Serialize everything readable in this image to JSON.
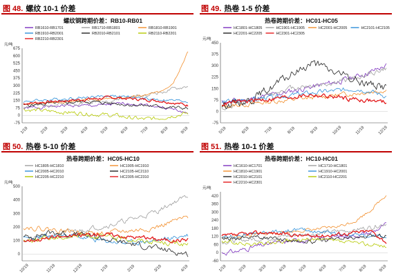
{
  "panels": [
    {
      "fig_label": "图 48.",
      "fig_name": "螺纹 10-1 价差",
      "chart_data": {
        "type": "line",
        "title": "螺纹钢跨期价差：RB10-RB01",
        "ylabel": "元/吨",
        "ylim": [
          -75,
          675
        ],
        "yticks": [
          "675",
          "600",
          "525",
          "450",
          "375",
          "300",
          "225",
          "150",
          "75",
          "0",
          "-75"
        ],
        "xticks": [
          "1/19",
          "2/19",
          "3/19",
          "4/19",
          "5/19",
          "6/19",
          "7/19",
          "8/19",
          "9/19"
        ],
        "legend_cols": 3,
        "series": [
          {
            "name": "RB1610-RB1701",
            "color": "#7b2fbe",
            "base": [
              70,
              80,
              90,
              100,
              95,
              100,
              110,
              120,
              110,
              90,
              60,
              20
            ],
            "trend": 0.0,
            "amp": 25,
            "seed": 1
          },
          {
            "name": "RB1710-RB1801",
            "color": "#9e9e9e",
            "base": [
              90,
              100,
              110,
              120,
              130,
              140,
              150,
              180,
              200,
              230,
              260,
              290
            ],
            "trend": 0.0,
            "amp": 30,
            "seed": 2
          },
          {
            "name": "RB1810-RB1901",
            "color": "#f28e2b",
            "base": [
              110,
              120,
              130,
              140,
              150,
              160,
              170,
              180,
              200,
              230,
              330,
              640
            ],
            "trend": 0.0,
            "amp": 20,
            "seed": 3
          },
          {
            "name": "RB1910-RB2001",
            "color": "#2e8fd8",
            "base": [
              140,
              150,
              160,
              170,
              180,
              190,
              200,
              180,
              170,
              160,
              150,
              140
            ],
            "trend": 0.0,
            "amp": 25,
            "seed": 4
          },
          {
            "name": "RB2010-RB2101",
            "color": "#222222",
            "base": [
              100,
              110,
              120,
              130,
              140,
              130,
              120,
              110,
              100,
              90,
              80,
              70
            ],
            "trend": 0.0,
            "amp": 30,
            "seed": 5
          },
          {
            "name": "RB2110-RB2201",
            "color": "#b5c900",
            "base": [
              60,
              50,
              40,
              30,
              20,
              10,
              0,
              -20,
              -40,
              -30,
              0,
              20
            ],
            "trend": 0.0,
            "amp": 35,
            "seed": 6
          },
          {
            "name": "RB2210-RB2301",
            "color": "#e31a1c",
            "base": [
              120,
              130,
              140,
              150,
              160,
              170,
              180,
              170,
              160,
              150,
              130,
              100
            ],
            "trend": 0.0,
            "amp": 25,
            "seed": 7
          }
        ]
      }
    },
    {
      "fig_label": "图 49.",
      "fig_name": "热卷 1-5 价差",
      "chart_data": {
        "type": "line",
        "title": "热卷跨期价差：HC01-HC05",
        "ylabel": "元/吨",
        "ylim": [
          -75,
          450
        ],
        "yticks": [
          "450",
          "375",
          "300",
          "225",
          "150",
          "75",
          "0",
          "-75"
        ],
        "xticks": [
          "5/19",
          "6/19",
          "7/19",
          "8/19",
          "9/19",
          "10/19",
          "11/19",
          "12/19"
        ],
        "legend_cols": 4,
        "series": [
          {
            "name": "HC1801-HC1805",
            "color": "#7b2fbe",
            "base": [
              60,
              70,
              80,
              100,
              120,
              140,
              160,
              180,
              200,
              230,
              260,
              300
            ],
            "amp": 30,
            "seed": 11
          },
          {
            "name": "HC1901-HC1905",
            "color": "#9e9e9e",
            "base": [
              20,
              40,
              60,
              100,
              140,
              160,
              170,
              180,
              200,
              220,
              250,
              280
            ],
            "amp": 30,
            "seed": 12
          },
          {
            "name": "HC2001-HC2005",
            "color": "#f28e2b",
            "base": [
              30,
              40,
              50,
              60,
              70,
              80,
              90,
              100,
              110,
              120,
              130,
              140
            ],
            "amp": 25,
            "seed": 13
          },
          {
            "name": "HC2101-HC2105",
            "color": "#2e8fd8",
            "base": [
              60,
              70,
              80,
              90,
              100,
              110,
              120,
              130,
              140,
              150,
              130,
              100
            ],
            "amp": 25,
            "seed": 14
          },
          {
            "name": "HC2201-HC2205",
            "color": "#222222",
            "base": [
              40,
              60,
              80,
              140,
              200,
              260,
              320,
              280,
              240,
              200,
              180,
              160
            ],
            "amp": 45,
            "seed": 15
          },
          {
            "name": "HC2301-HC2305",
            "color": "#e31a1c",
            "base": [
              50,
              60,
              70,
              80,
              90,
              100,
              110,
              100,
              90,
              80,
              70,
              60
            ],
            "amp": 25,
            "seed": 16
          }
        ]
      }
    },
    {
      "fig_label": "图 50.",
      "fig_name": "热卷 5-10 价差",
      "chart_data": {
        "type": "line",
        "title": "热卷跨期价差：HC05-HC10",
        "ylabel": "元/吨",
        "ylim": [
          -50,
          500
        ],
        "yticks": [
          "500",
          "400",
          "300",
          "200",
          "100",
          "0"
        ],
        "xticks": [
          "10/19",
          "11/19",
          "12/19",
          "1/19",
          "2/19",
          "3/19",
          "4/19"
        ],
        "legend_cols": 2,
        "series": [
          {
            "name": "HC1805-HC1810",
            "color": "#9e9e9e",
            "base": [
              100,
              120,
              140,
              160,
              180,
              200,
              220,
              250,
              280,
              320,
              380,
              430
            ],
            "amp": 30,
            "seed": 21
          },
          {
            "name": "HC1905-HC1910",
            "color": "#f28e2b",
            "base": [
              200,
              190,
              180,
              170,
              160,
              150,
              160,
              170,
              180,
              200,
              240,
              270
            ],
            "amp": 30,
            "seed": 22
          },
          {
            "name": "HC2005-HC2010",
            "color": "#2e8fd8",
            "base": [
              110,
              120,
              130,
              140,
              120,
              100,
              90,
              80,
              90,
              100,
              120,
              140
            ],
            "amp": 30,
            "seed": 23
          },
          {
            "name": "HC2105-HC2110",
            "color": "#222222",
            "base": [
              120,
              140,
              160,
              150,
              140,
              120,
              100,
              80,
              60,
              40,
              20,
              0
            ],
            "amp": 35,
            "seed": 24
          },
          {
            "name": "HC2205-HC2210",
            "color": "#b5c900",
            "base": [
              100,
              110,
              120,
              130,
              140,
              130,
              120,
              110,
              100,
              90,
              80,
              70
            ],
            "amp": 30,
            "seed": 25
          },
          {
            "name": "HC2305-HC2310",
            "color": "#e31a1c",
            "base": [
              100,
              110,
              120,
              130,
              140,
              150,
              140,
              130,
              120,
              110,
              100,
              110
            ],
            "amp": 25,
            "seed": 26
          }
        ]
      }
    },
    {
      "fig_label": "图 51.",
      "fig_name": "热卷 10-1 价差",
      "chart_data": {
        "type": "line",
        "title": "热卷跨期价差：HC10-HC01",
        "ylabel": "元/吨",
        "ylim": [
          -60,
          450
        ],
        "yticks": [
          "420",
          "360",
          "300",
          "240",
          "180",
          "120",
          "60",
          "0",
          "-60"
        ],
        "xticks": [
          "1/19",
          "2/19",
          "3/19",
          "4/19",
          "5/19",
          "6/19",
          "7/19",
          "8/19",
          "9/19"
        ],
        "legend_cols": 2,
        "series": [
          {
            "name": "HC1610-HC1701",
            "color": "#7b2fbe",
            "base": [
              0,
              10,
              40,
              60,
              80,
              90,
              100,
              110,
              120,
              130,
              150,
              210
            ],
            "amp": 30,
            "seed": 31
          },
          {
            "name": "HC1710-HC1801",
            "color": "#9e9e9e",
            "base": [
              80,
              90,
              100,
              110,
              120,
              130,
              140,
              150,
              160,
              170,
              190,
              220
            ],
            "amp": 30,
            "seed": 32
          },
          {
            "name": "HC1810-HC1901",
            "color": "#f28e2b",
            "base": [
              110,
              120,
              130,
              140,
              150,
              160,
              170,
              180,
              200,
              240,
              320,
              430
            ],
            "amp": 20,
            "seed": 33
          },
          {
            "name": "HC1910-HC2001",
            "color": "#2e8fd8",
            "base": [
              120,
              130,
              140,
              150,
              160,
              170,
              160,
              150,
              140,
              130,
              120,
              110
            ],
            "amp": 25,
            "seed": 34
          },
          {
            "name": "HC2010-HC2101",
            "color": "#222222",
            "base": [
              100,
              110,
              120,
              110,
              100,
              90,
              80,
              90,
              100,
              110,
              120,
              130
            ],
            "amp": 25,
            "seed": 35
          },
          {
            "name": "HC2110-HC2201",
            "color": "#b5c900",
            "base": [
              80,
              70,
              60,
              70,
              80,
              90,
              100,
              90,
              80,
              70,
              60,
              50
            ],
            "amp": 25,
            "seed": 36
          },
          {
            "name": "HC2210-HC2301",
            "color": "#e31a1c",
            "base": [
              120,
              130,
              140,
              150,
              140,
              130,
              120,
              130,
              140,
              150,
              160,
              80
            ],
            "amp": 25,
            "seed": 37
          }
        ]
      }
    }
  ]
}
